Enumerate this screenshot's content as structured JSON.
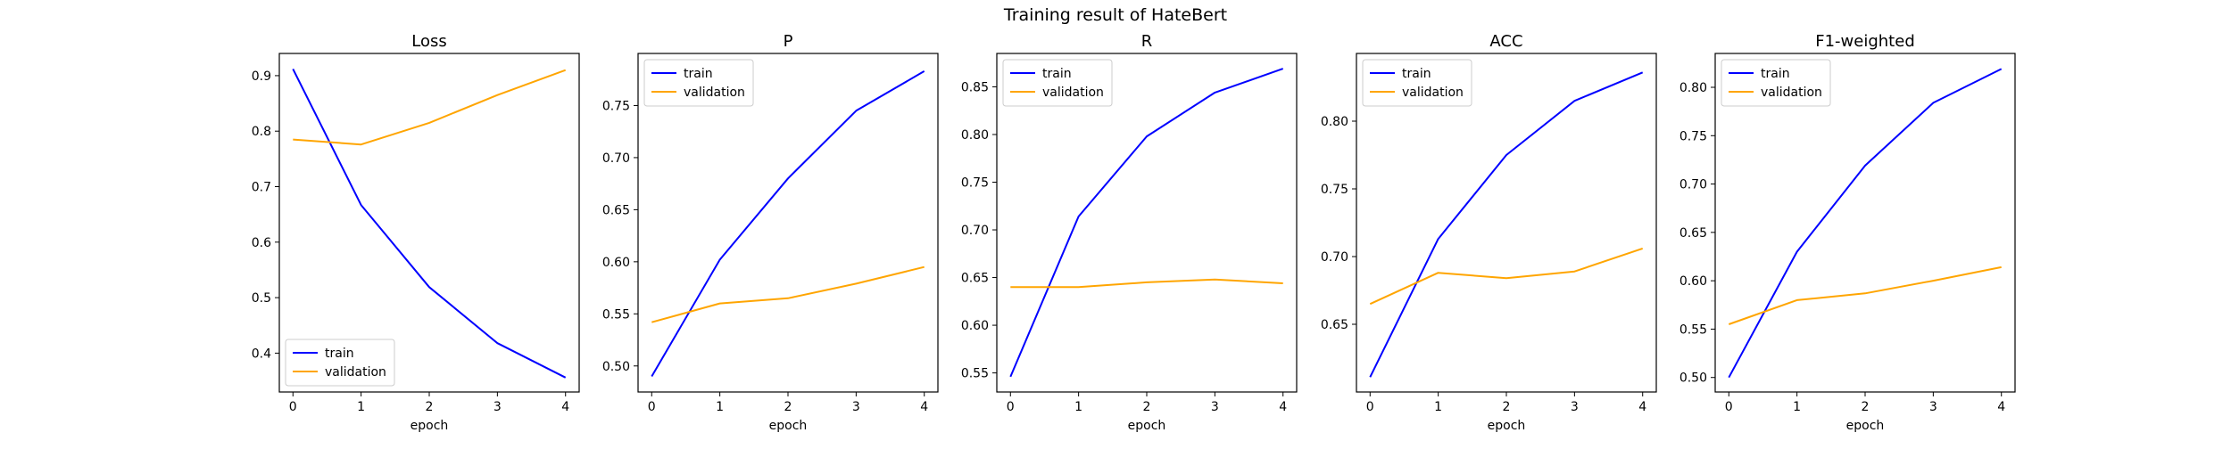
{
  "figure": {
    "suptitle": "Training result of HateBert"
  },
  "colors": {
    "train": "#0000ff",
    "validation": "#ffa500"
  },
  "chart_data": [
    {
      "type": "line",
      "title": "Loss",
      "xlabel": "epoch",
      "ylabel": "",
      "x": [
        0,
        1,
        2,
        3,
        4
      ],
      "xlim": [
        -0.2,
        4.2
      ],
      "ylim": [
        0.33,
        0.94
      ],
      "xticks": [
        0,
        1,
        2,
        3,
        4
      ],
      "yticks": [
        0.4,
        0.5,
        0.6,
        0.7,
        0.8,
        0.9
      ],
      "ytick_labels": [
        "0.4",
        "0.5",
        "0.6",
        "0.7",
        "0.8",
        "0.9"
      ],
      "legend": "lower-left",
      "grid": false,
      "series": [
        {
          "name": "train",
          "values": [
            0.912,
            0.667,
            0.519,
            0.418,
            0.356
          ]
        },
        {
          "name": "validation",
          "values": [
            0.785,
            0.776,
            0.815,
            0.865,
            0.91
          ]
        }
      ]
    },
    {
      "type": "line",
      "title": "P",
      "xlabel": "epoch",
      "ylabel": "",
      "x": [
        0,
        1,
        2,
        3,
        4
      ],
      "xlim": [
        -0.2,
        4.2
      ],
      "ylim": [
        0.475,
        0.8
      ],
      "xticks": [
        0,
        1,
        2,
        3,
        4
      ],
      "yticks": [
        0.5,
        0.55,
        0.6,
        0.65,
        0.7,
        0.75
      ],
      "ytick_labels": [
        "0.50",
        "0.55",
        "0.60",
        "0.65",
        "0.70",
        "0.75"
      ],
      "legend": "top-left",
      "grid": false,
      "series": [
        {
          "name": "train",
          "values": [
            0.49,
            0.602,
            0.68,
            0.745,
            0.783
          ]
        },
        {
          "name": "validation",
          "values": [
            0.542,
            0.56,
            0.565,
            0.579,
            0.595
          ]
        }
      ]
    },
    {
      "type": "line",
      "title": "R",
      "xlabel": "epoch",
      "ylabel": "",
      "x": [
        0,
        1,
        2,
        3,
        4
      ],
      "xlim": [
        -0.2,
        4.2
      ],
      "ylim": [
        0.53,
        0.885
      ],
      "xticks": [
        0,
        1,
        2,
        3,
        4
      ],
      "yticks": [
        0.55,
        0.6,
        0.65,
        0.7,
        0.75,
        0.8,
        0.85
      ],
      "ytick_labels": [
        "0.55",
        "0.60",
        "0.65",
        "0.70",
        "0.75",
        "0.80",
        "0.85"
      ],
      "legend": "top-left",
      "grid": false,
      "series": [
        {
          "name": "train",
          "values": [
            0.546,
            0.714,
            0.798,
            0.844,
            0.869
          ]
        },
        {
          "name": "validation",
          "values": [
            0.64,
            0.64,
            0.645,
            0.648,
            0.644
          ]
        }
      ]
    },
    {
      "type": "line",
      "title": "ACC",
      "xlabel": "epoch",
      "ylabel": "",
      "x": [
        0,
        1,
        2,
        3,
        4
      ],
      "xlim": [
        -0.2,
        4.2
      ],
      "ylim": [
        0.6,
        0.85
      ],
      "xticks": [
        0,
        1,
        2,
        3,
        4
      ],
      "yticks": [
        0.65,
        0.7,
        0.75,
        0.8
      ],
      "ytick_labels": [
        "0.65",
        "0.70",
        "0.75",
        "0.80"
      ],
      "legend": "top-left",
      "grid": false,
      "series": [
        {
          "name": "train",
          "values": [
            0.611,
            0.713,
            0.775,
            0.815,
            0.836
          ]
        },
        {
          "name": "validation",
          "values": [
            0.665,
            0.688,
            0.684,
            0.689,
            0.706
          ]
        }
      ]
    },
    {
      "type": "line",
      "title": "F1-weighted",
      "xlabel": "epoch",
      "ylabel": "",
      "x": [
        0,
        1,
        2,
        3,
        4
      ],
      "xlim": [
        -0.2,
        4.2
      ],
      "ylim": [
        0.485,
        0.835
      ],
      "xticks": [
        0,
        1,
        2,
        3,
        4
      ],
      "yticks": [
        0.5,
        0.55,
        0.6,
        0.65,
        0.7,
        0.75,
        0.8
      ],
      "ytick_labels": [
        "0.50",
        "0.55",
        "0.60",
        "0.65",
        "0.70",
        "0.75",
        "0.80"
      ],
      "legend": "top-left",
      "grid": false,
      "series": [
        {
          "name": "train",
          "values": [
            0.5,
            0.63,
            0.719,
            0.784,
            0.819
          ]
        },
        {
          "name": "validation",
          "values": [
            0.555,
            0.58,
            0.587,
            0.6,
            0.614
          ]
        }
      ]
    }
  ]
}
